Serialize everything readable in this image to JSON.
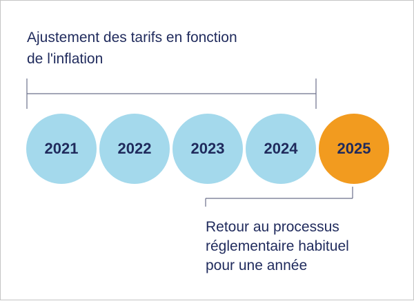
{
  "header": {
    "line1": "Ajustement des tarifs en fonction",
    "line2": "de l'inflation"
  },
  "timeline": {
    "years": [
      "2021",
      "2022",
      "2023",
      "2024",
      "2025"
    ],
    "inflation_years_color": "#a4d9ec",
    "highlight_year_color": "#f29b1f",
    "bracket_color": "#6a6f8a",
    "text_color": "#1f2a5c"
  },
  "footer": {
    "line1": "Retour au processus",
    "line2": "réglementaire habituel",
    "line3": "pour une année"
  }
}
